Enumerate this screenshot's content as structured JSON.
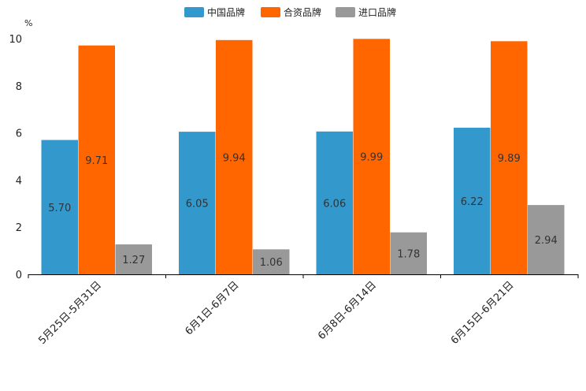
{
  "chart_data": {
    "type": "bar",
    "unit": "%",
    "categories": [
      "5月25日-5月31日",
      "6月1日-6月7日",
      "6月8日-6月14日",
      "6月15日-6月21日"
    ],
    "series": [
      {
        "name": "中国品牌",
        "color": "#3399cc",
        "values": [
          5.7,
          6.05,
          6.06,
          6.22
        ],
        "labels": [
          "5.70",
          "6.05",
          "6.06",
          "6.22"
        ]
      },
      {
        "name": "合资品牌",
        "color": "#ff6600",
        "values": [
          9.71,
          9.94,
          9.99,
          9.89
        ],
        "labels": [
          "9.71",
          "9.94",
          "9.99",
          "9.89"
        ]
      },
      {
        "name": "进口品牌",
        "color": "#999999",
        "values": [
          1.27,
          1.06,
          1.78,
          2.94
        ],
        "labels": [
          "1.27",
          "1.06",
          "1.78",
          "2.94"
        ]
      }
    ],
    "ylim": [
      0,
      10
    ],
    "yticks": [
      "0",
      "2",
      "4",
      "6",
      "8",
      "10"
    ],
    "legend_position": "top-center",
    "grid": false
  }
}
